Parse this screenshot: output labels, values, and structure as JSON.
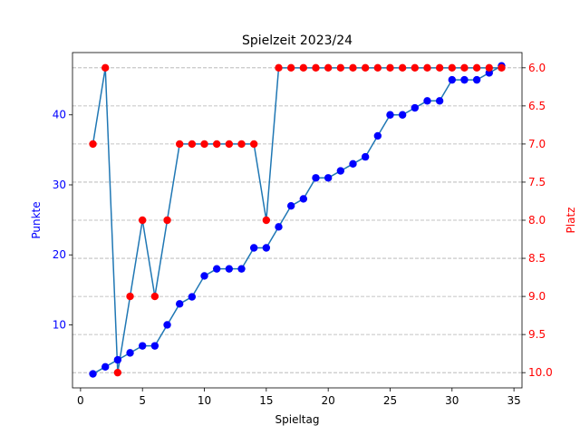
{
  "chart_data": {
    "type": "line",
    "title": "Spielzeit 2023/24",
    "xlabel": "Spieltag",
    "ylabel": "Punkte",
    "y2label": "Platz",
    "x": [
      1,
      2,
      3,
      4,
      5,
      6,
      7,
      8,
      9,
      10,
      11,
      12,
      13,
      14,
      15,
      16,
      17,
      18,
      19,
      20,
      21,
      22,
      23,
      24,
      25,
      26,
      27,
      28,
      29,
      30,
      31,
      32,
      33,
      34
    ],
    "xlim": [
      -0.65,
      35.65
    ],
    "ylim": [
      1.0,
      48.9
    ],
    "y2lim": [
      10.2,
      5.8
    ],
    "y2_inverted": true,
    "xticks": [
      0,
      5,
      10,
      15,
      20,
      25,
      30,
      35
    ],
    "yticks": [
      10,
      20,
      30,
      40
    ],
    "y2ticks": [
      6.0,
      6.5,
      7.0,
      7.5,
      8.0,
      8.5,
      9.0,
      9.5,
      10.0
    ],
    "y2tick_labels": [
      "6.0",
      "6.5",
      "7.0",
      "7.5",
      "8.0",
      "8.5",
      "9.0",
      "9.5",
      "10.0"
    ],
    "grid": "horizontal dashed (right axis)",
    "series": [
      {
        "axis": "left",
        "color": "#0000ff",
        "line_color": "#1f77b4",
        "values": [
          3,
          4,
          5,
          6,
          7,
          7,
          10,
          13,
          14,
          17,
          18,
          18,
          18,
          21,
          21,
          24,
          27,
          28,
          31,
          31,
          32,
          33,
          34,
          37,
          40,
          40,
          41,
          42,
          42,
          45,
          45,
          45,
          46,
          47
        ]
      },
      {
        "axis": "right",
        "color": "#ff0000",
        "line_color": "#1f77b4",
        "values": [
          7,
          6,
          10,
          9,
          8,
          9,
          8,
          7,
          7,
          7,
          7,
          7,
          7,
          7,
          8,
          6,
          6,
          6,
          6,
          6,
          6,
          6,
          6,
          6,
          6,
          6,
          6,
          6,
          6,
          6,
          6,
          6,
          6,
          6
        ]
      }
    ]
  }
}
